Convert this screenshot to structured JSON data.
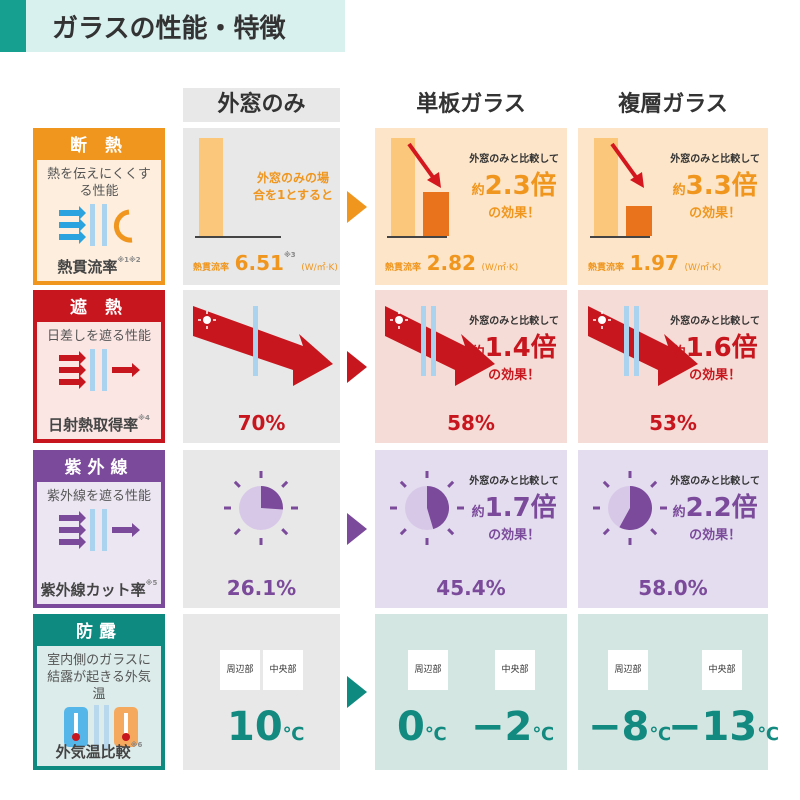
{
  "title": "ガラスの性能・特徴",
  "columns": [
    "外窓のみ",
    "単板ガラス",
    "複層ガラス"
  ],
  "colors": {
    "insulation": "#f0961e",
    "shading": "#c8161e",
    "uv": "#7b4a9a",
    "dew": "#0f8a80"
  },
  "rows": [
    {
      "head": "断 熱",
      "desc": "熱を伝えにくくする性能",
      "foot": "熱貫流率",
      "foot_note": "※1※2",
      "icon": "heat-flow-icon",
      "c1": {
        "text": "外窓のみの場合を1とすると",
        "label": "熱貫流率",
        "value": "6.51",
        "note": "※3",
        "unit": "(W/㎡·K)"
      },
      "c2": {
        "compare": "外窓のみと比較して",
        "prefix": "約",
        "mult": "2.3倍",
        "effect": "の効果！",
        "label": "熱貫流率",
        "value": "2.82",
        "unit": "(W/㎡·K)"
      },
      "c3": {
        "compare": "外窓のみと比較して",
        "prefix": "約",
        "mult": "3.3倍",
        "effect": "の効果！",
        "label": "熱貫流率",
        "value": "1.97",
        "unit": "(W/㎡·K)"
      }
    },
    {
      "head": "遮 熱",
      "desc": "日差しを遮る性能",
      "foot": "日射熱取得率",
      "foot_note": "※4",
      "icon": "sun-arrow-icon",
      "c1": {
        "value": "70%"
      },
      "c2": {
        "compare": "外窓のみと比較して",
        "prefix": "約",
        "mult": "1.4倍",
        "effect": "の効果！",
        "value": "58%"
      },
      "c3": {
        "compare": "外窓のみと比較して",
        "prefix": "約",
        "mult": "1.6倍",
        "effect": "の効果！",
        "value": "53%"
      }
    },
    {
      "head": "紫外線",
      "desc": "紫外線を遮る性能",
      "foot": "紫外線カット率",
      "foot_note": "※5",
      "icon": "uv-arrow-icon",
      "c1": {
        "value": "26.1%",
        "fill": 26.1
      },
      "c2": {
        "compare": "外窓のみと比較して",
        "prefix": "約",
        "mult": "1.7倍",
        "effect": "の効果！",
        "value": "45.4%",
        "fill": 45.4
      },
      "c3": {
        "compare": "外窓のみと比較して",
        "prefix": "約",
        "mult": "2.2倍",
        "effect": "の効果！",
        "value": "58.0%",
        "fill": 58.0
      }
    },
    {
      "head": "防露",
      "desc": "室内側のガラスに結露が起きる外気温",
      "foot": "外気温比較",
      "foot_note": "※6",
      "icon": "thermometer-icon",
      "tags": [
        "周辺部",
        "中央部"
      ],
      "unit": "℃",
      "c1": {
        "value": "10"
      },
      "c2": {
        "edge": "0",
        "center": "−2"
      },
      "c3": {
        "edge": "−8",
        "center": "−13"
      }
    }
  ]
}
